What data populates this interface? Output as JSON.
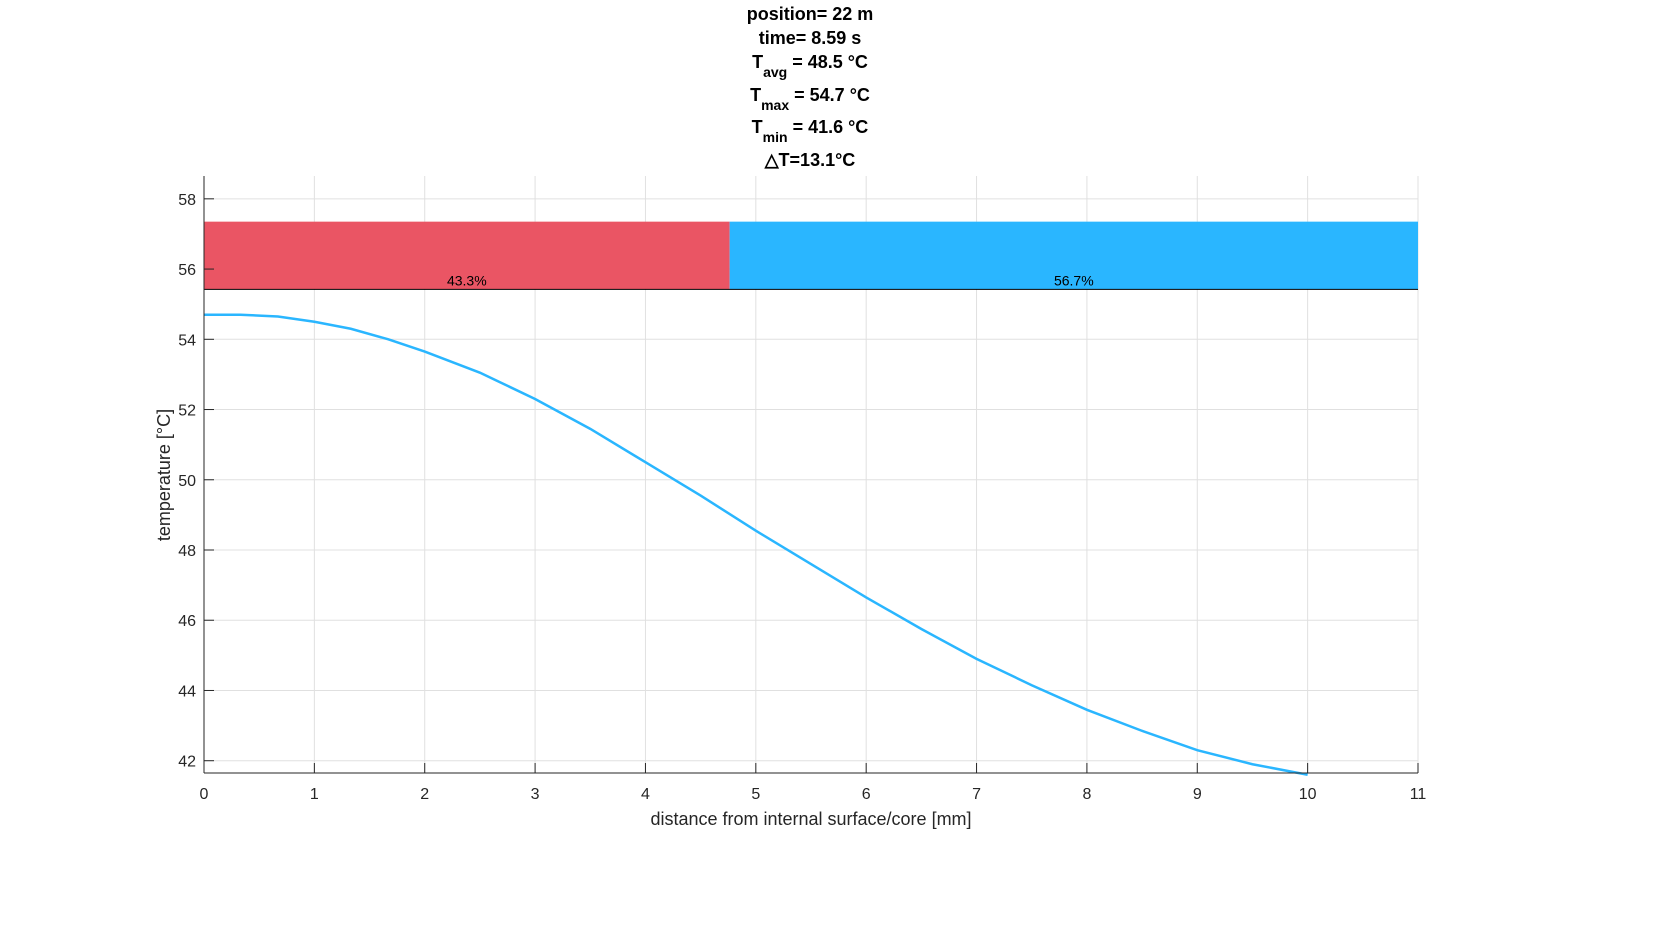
{
  "chart_data": {
    "type": "line",
    "title_lines": [
      {
        "main": "position= 22 m",
        "sub": "",
        "rest": ""
      },
      {
        "main": "time= 8.59 s",
        "sub": "",
        "rest": ""
      },
      {
        "main": "T",
        "sub": "avg",
        "rest": " = 48.5 °C"
      },
      {
        "main": "T",
        "sub": "max",
        "rest": " = 54.7 °C"
      },
      {
        "main": "T",
        "sub": "min",
        "rest": " = 41.6 °C"
      },
      {
        "main": "△T=13.1°C",
        "sub": "",
        "rest": ""
      }
    ],
    "xlabel": "distance from internal surface/core [mm]",
    "ylabel": "temperature [°C]",
    "xlim": [
      0,
      11
    ],
    "ylim": [
      41.65,
      58.65
    ],
    "xticks": [
      0,
      1,
      2,
      3,
      4,
      5,
      6,
      7,
      8,
      9,
      10,
      11
    ],
    "yticks": [
      42,
      44,
      46,
      48,
      50,
      52,
      54,
      56,
      58
    ],
    "grid": true,
    "series": [
      {
        "name": "temperature",
        "color": "#2AB6FF",
        "x": [
          0,
          0.33,
          0.67,
          1,
          1.33,
          1.67,
          2,
          2.5,
          3,
          3.5,
          4,
          4.5,
          5,
          5.5,
          6,
          6.5,
          7,
          7.5,
          8,
          8.5,
          9,
          9.5,
          10
        ],
        "y": [
          54.7,
          54.7,
          54.65,
          54.5,
          54.3,
          54.0,
          53.65,
          53.05,
          52.3,
          51.45,
          50.5,
          49.55,
          48.55,
          47.6,
          46.65,
          45.75,
          44.9,
          44.15,
          43.45,
          42.85,
          42.3,
          41.9,
          41.6
        ]
      }
    ],
    "stacked_bar": {
      "y_range": [
        55.42,
        57.35
      ],
      "segments": [
        {
          "label": "43.3%",
          "fraction": 0.433,
          "color": "#EA5564"
        },
        {
          "label": "56.7%",
          "fraction": 0.567,
          "color": "#2AB6FF"
        }
      ]
    }
  }
}
